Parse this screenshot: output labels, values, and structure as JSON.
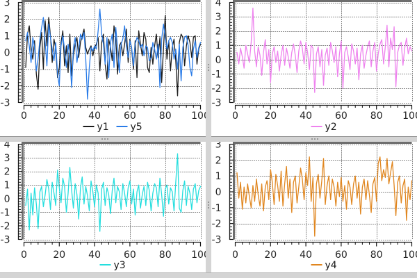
{
  "ui": {
    "background": "#ffffff",
    "splitters": {
      "bar_color": "#d4d4d4",
      "edge_color": "#8f8f8f",
      "handle_dot_color": "#979797"
    }
  },
  "chart_data": [
    {
      "id": "top-left",
      "type": "line",
      "title": "",
      "xlabel": "",
      "ylabel": "",
      "xlim": [
        0,
        100
      ],
      "ylim": [
        -3,
        3
      ],
      "xticks": [
        0,
        20,
        40,
        60,
        80,
        100
      ],
      "yticks": [
        3,
        2,
        1,
        0,
        -1,
        -2,
        -3
      ],
      "x_minor_step": 4,
      "y_minor_step": 0.2,
      "grid": true,
      "legend_position": "bottom",
      "x_start": 1,
      "x_step": 1,
      "series": [
        {
          "name": "y1",
          "color": "#1c1c1c",
          "values": [
            -0.9,
            1.1,
            1.6,
            0.2,
            -0.4,
            0.7,
            -1.3,
            -2.2,
            0.3,
            1.2,
            -1.0,
            1.9,
            0.4,
            2.1,
            1.0,
            -0.6,
            0.8,
            0.2,
            -1.5,
            -0.9,
            0.6,
            1.3,
            -0.8,
            0.4,
            -1.2,
            1.1,
            -1.4,
            -0.2,
            0.5,
            0.9,
            -0.3,
            0.6,
            1.0,
            1.4,
            0.3,
            -0.1,
            0.2,
            0.4,
            -0.2,
            0.3,
            0.5,
            0.9,
            -1.1,
            0.6,
            1.1,
            -0.7,
            -1.6,
            0.8,
            0.3,
            -0.5,
            1.6,
            0.9,
            -1.3,
            0.4,
            0.6,
            -0.2,
            0.5,
            1.4,
            -0.6,
            0.8,
            0.2,
            -1.0,
            0.7,
            -1.5,
            1.3,
            0.5,
            -0.2,
            1.2,
            0.8,
            -0.9,
            -1.2,
            0.3,
            -0.7,
            0.4,
            1.1,
            -0.3,
            0.9,
            -1.8,
            0.2,
            2.2,
            -0.4,
            0.7,
            -1.1,
            0.3,
            0.8,
            -0.5,
            -2.6,
            0.6,
            1.1,
            0.9,
            -0.8,
            0.4,
            1.0,
            0.6,
            -0.3,
            0.9,
            1.0,
            -0.7,
            0.2,
            0.5
          ]
        },
        {
          "name": "y5",
          "color": "#2a7ce8",
          "values": [
            0.7,
            1.2,
            0.4,
            -0.6,
            0.9,
            0.3,
            -1.1,
            -0.4,
            0.8,
            1.5,
            2.1,
            0.6,
            -0.8,
            1.7,
            0.9,
            0.2,
            -0.5,
            0.6,
            -1.3,
            -2.0,
            0.4,
            1.0,
            0.2,
            -0.9,
            0.5,
            -0.3,
            -2.1,
            0.3,
            0.9,
            -0.6,
            0.2,
            1.1,
            0.8,
            1.2,
            -0.4,
            -2.8,
            -0.9,
            0.3,
            0.1,
            0.4,
            0.2,
            1.3,
            2.6,
            1.1,
            0.5,
            -0.7,
            0.9,
            -1.5,
            0.6,
            1.1,
            -0.9,
            1.5,
            0.3,
            -1.2,
            0.5,
            0.8,
            1.6,
            0.4,
            -0.3,
            0.7,
            0.3,
            -0.8,
            0.5,
            0.9,
            0.7,
            0.3,
            0.5,
            -0.2,
            0.4,
            0.3,
            -0.5,
            -0.3,
            0.6,
            0.2,
            -0.4,
            0.5,
            -2.1,
            0.8,
            1.7,
            0.9,
            0.2,
            0.7,
            0.9,
            0.6,
            -0.4,
            0.2,
            -1.0,
            0.5,
            -1.7,
            0.3,
            0.9,
            1.0,
            0.4,
            -0.9,
            -1.4,
            0.2,
            0.7,
            -0.3,
            0.3,
            0.6
          ]
        }
      ]
    },
    {
      "id": "top-right",
      "type": "line",
      "title": "",
      "xlabel": "",
      "ylabel": "",
      "xlim": [
        0,
        100
      ],
      "ylim": [
        -3,
        4
      ],
      "xticks": [
        0,
        20,
        40,
        60,
        80,
        100
      ],
      "yticks": [
        4,
        3,
        2,
        1,
        0,
        -1,
        -2,
        -3
      ],
      "x_minor_step": 4,
      "y_minor_step": 0.2,
      "grid": true,
      "legend_position": "bottom",
      "x_start": 1,
      "x_step": 1,
      "series": [
        {
          "name": "y2",
          "color": "#ee82ee",
          "values": [
            0.5,
            -0.3,
            0.8,
            0.2,
            -0.6,
            1.0,
            0.4,
            -0.2,
            1.2,
            3.6,
            0.6,
            -0.5,
            0.9,
            0.3,
            -1.1,
            0.5,
            1.4,
            -0.3,
            0.7,
            -1.6,
            0.4,
            0.9,
            -0.2,
            0.6,
            -0.8,
            0.3,
            1.0,
            -0.4,
            0.8,
            0.2,
            -0.6,
            0.5,
            1.1,
            0.3,
            -0.9,
            0.6,
            1.3,
            0.8,
            -0.3,
            1.2,
            0.5,
            -0.7,
            1.0,
            0.8,
            -2.3,
            0.4,
            0.9,
            -0.5,
            0.7,
            -1.8,
            0.3,
            0.8,
            -0.4,
            1.2,
            0.6,
            -0.2,
            0.9,
            -1.2,
            0.4,
            1.3,
            -2.0,
            0.5,
            0.9,
            0.2,
            -0.7,
            1.1,
            0.6,
            -0.3,
            0.8,
            -1.4,
            0.4,
            1.0,
            -0.6,
            0.3,
            0.9,
            1.3,
            -0.5,
            0.6,
            1.2,
            -0.8,
            0.4,
            1.1,
            1.4,
            -0.3,
            0.9,
            2.4,
            -0.5,
            1.5,
            0.7,
            2.3,
            -1.9,
            0.5,
            1.0,
            1.2,
            -0.4,
            0.8,
            1.5,
            0.4,
            0.9,
            0.6
          ]
        }
      ]
    },
    {
      "id": "bottom-left",
      "type": "line",
      "title": "",
      "xlabel": "",
      "ylabel": "",
      "xlim": [
        0,
        100
      ],
      "ylim": [
        -3,
        4
      ],
      "xticks": [
        0,
        20,
        40,
        60,
        80,
        100
      ],
      "yticks": [
        4,
        3,
        2,
        1,
        0,
        -1,
        -2,
        -3
      ],
      "x_minor_step": 4,
      "y_minor_step": 0.2,
      "grid": true,
      "legend_position": "bottom",
      "x_start": 1,
      "x_step": 1,
      "series": [
        {
          "name": "y3",
          "color": "#25dede",
          "values": [
            -0.5,
            0.7,
            -2.3,
            0.4,
            -1.2,
            0.8,
            -0.4,
            -2.2,
            0.5,
            0.9,
            -0.6,
            0.3,
            1.4,
            0.7,
            -0.8,
            1.2,
            0.4,
            -0.5,
            2.1,
            0.8,
            -0.3,
            1.5,
            0.9,
            -1.0,
            0.4,
            2.3,
            0.6,
            -0.7,
            1.1,
            0.3,
            -1.5,
            0.8,
            1.6,
            -0.4,
            0.9,
            0.2,
            -0.9,
            1.3,
            0.5,
            -0.6,
            1.0,
            0.4,
            -2.4,
            0.7,
            1.2,
            -0.5,
            0.8,
            0.3,
            -1.1,
            0.6,
            1.5,
            -0.3,
            0.9,
            0.5,
            -0.8,
            1.1,
            0.4,
            -0.6,
            0.8,
            1.3,
            -0.4,
            0.7,
            -1.2,
            0.5,
            1.0,
            -0.7,
            0.3,
            0.9,
            -0.5,
            1.2,
            0.6,
            -0.9,
            0.4,
            1.1,
            0.8,
            -0.6,
            1.5,
            0.3,
            -1.3,
            0.7,
            1.0,
            -0.4,
            0.8,
            0.5,
            -0.9,
            1.2,
            3.3,
            -0.7,
            -1.0,
            0.6,
            1.3,
            -0.5,
            0.9,
            0.4,
            -0.8,
            0.7,
            1.1,
            -0.3,
            0.6,
            0.9
          ]
        }
      ]
    },
    {
      "id": "bottom-right",
      "type": "line",
      "title": "",
      "xlabel": "",
      "ylabel": "",
      "xlim": [
        0,
        100
      ],
      "ylim": [
        -3,
        3
      ],
      "xticks": [
        0,
        20,
        40,
        60,
        80,
        100
      ],
      "yticks": [
        3,
        2,
        1,
        0,
        -1,
        -2,
        -3
      ],
      "x_minor_step": 4,
      "y_minor_step": 0.2,
      "grid": true,
      "legend_position": "bottom",
      "x_start": 1,
      "x_step": 1,
      "series": [
        {
          "name": "y4",
          "color": "#e0861f",
          "values": [
            1.2,
            -0.4,
            0.6,
            -1.1,
            0.3,
            -0.7,
            0.5,
            -0.3,
            -1.0,
            0.4,
            -0.6,
            0.8,
            -0.2,
            -0.9,
            0.5,
            -1.2,
            0.3,
            0.7,
            -0.5,
            1.4,
            0.6,
            -0.8,
            1.1,
            0.4,
            -0.6,
            1.3,
            -0.9,
            0.5,
            1.6,
            -0.4,
            0.8,
            -1.3,
            0.6,
            1.0,
            -0.7,
            0.3,
            1.5,
            0.8,
            -0.5,
            1.2,
            0.4,
            2.2,
            -0.6,
            0.9,
            -2.8,
            0.5,
            1.1,
            -0.4,
            0.7,
            2.1,
            -0.8,
            0.4,
            1.0,
            -0.5,
            0.8,
            0.3,
            -0.9,
            0.6,
            -0.3,
            0.9,
            -0.6,
            0.4,
            -1.1,
            0.7,
            0.3,
            -0.8,
            0.5,
            1.0,
            -0.4,
            0.6,
            -1.4,
            0.3,
            0.8,
            -0.5,
            0.7,
            -0.2,
            -1.3,
            0.5,
            0.9,
            -0.6,
            1.8,
            2.2,
            0.7,
            1.4,
            0.9,
            2.1,
            0.5,
            1.2,
            1.9,
            0.4,
            -1.5,
            0.6,
            1.0,
            -0.7,
            0.4,
            0.8,
            -1.8,
            0.3,
            -0.5,
            0.7
          ]
        }
      ]
    }
  ]
}
